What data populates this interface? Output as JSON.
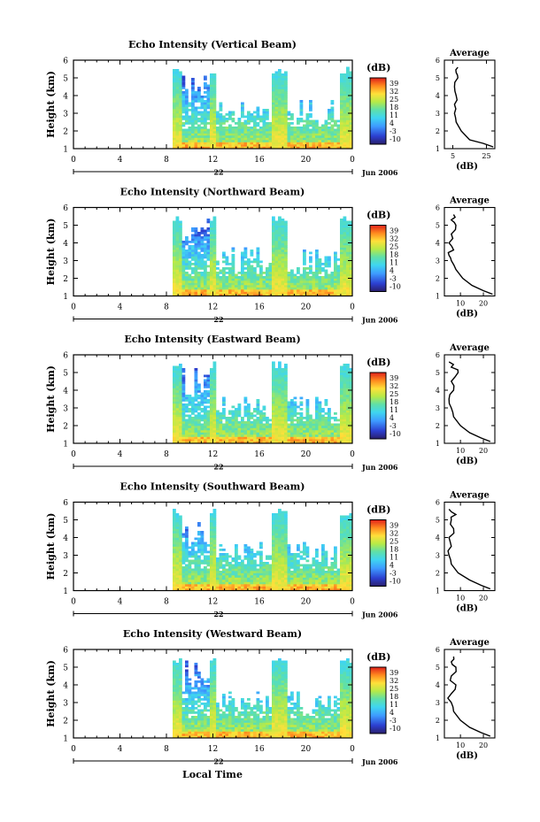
{
  "figure": {
    "xlabel_bottom": "Local Time",
    "date_label": "Jun 2006",
    "day_label": "22",
    "avg_title": "Average",
    "cbar_title": "(dB)",
    "avg_xlabel": "(dB)",
    "ylabel": "Height (km)",
    "x_ticks": [
      "0",
      "4",
      "8",
      "12",
      "16",
      "20",
      "0"
    ],
    "y_ticks": [
      "1",
      "2",
      "3",
      "4",
      "5",
      "6"
    ],
    "cbar_ticks": [
      "39",
      "32",
      "25",
      "18",
      "11",
      "4",
      "-3",
      "-10"
    ]
  },
  "chart_data": [
    {
      "type": "heatmap",
      "title": "Echo Intensity (Vertical Beam)",
      "xlabel": "Local Time",
      "ylabel": "Height (km)",
      "xlim": [
        0,
        24
      ],
      "ylim": [
        1,
        6
      ],
      "clim": [
        -10,
        39
      ],
      "echo_windows_hours": [
        [
          8.5,
          21.5
        ],
        [
          21.3,
          24
        ]
      ],
      "max_echo_height_km": 5.5,
      "average_profile": {
        "title": "Average",
        "xlabel": "(dB)",
        "xticks": [
          "5",
          "25"
        ],
        "xlim": [
          0,
          30
        ],
        "height_km": [
          1.1,
          1.3,
          1.5,
          2.0,
          2.5,
          3.0,
          3.5,
          4.0,
          4.5,
          5.0,
          5.3,
          5.6
        ],
        "db": [
          29,
          23,
          15,
          10,
          7,
          6,
          6,
          7,
          6,
          8,
          7,
          8
        ]
      }
    },
    {
      "type": "heatmap",
      "title": "Echo Intensity (Northward Beam)",
      "xlabel": "Local Time",
      "ylabel": "Height (km)",
      "xlim": [
        0,
        24
      ],
      "ylim": [
        1,
        6
      ],
      "clim": [
        -10,
        39
      ],
      "max_echo_height_km": 5.5,
      "average_profile": {
        "title": "Average",
        "xlabel": "(dB)",
        "xticks": [
          "10",
          "20"
        ],
        "xlim": [
          3,
          25
        ],
        "height_km": [
          1.1,
          1.3,
          1.6,
          2.0,
          2.5,
          3.0,
          3.3,
          3.6,
          4.0,
          4.5,
          5.0,
          5.3,
          5.6
        ],
        "db": [
          24,
          20,
          15,
          11,
          8,
          6,
          5,
          7,
          5,
          6,
          8,
          6,
          7
        ]
      }
    },
    {
      "type": "heatmap",
      "title": "Echo Intensity (Eastward Beam)",
      "xlabel": "Local Time",
      "ylabel": "Height (km)",
      "xlim": [
        0,
        24
      ],
      "ylim": [
        1,
        6
      ],
      "clim": [
        -10,
        39
      ],
      "max_echo_height_km": 5.5,
      "average_profile": {
        "title": "Average",
        "xlabel": "(dB)",
        "xticks": [
          "10",
          "20"
        ],
        "xlim": [
          3,
          25
        ],
        "height_km": [
          1.1,
          1.3,
          1.6,
          2.0,
          2.5,
          3.0,
          3.5,
          4.0,
          4.5,
          5.0,
          5.3,
          5.6
        ],
        "db": [
          23,
          19,
          14,
          10,
          7,
          6,
          5,
          7,
          6,
          9,
          6,
          5
        ]
      }
    },
    {
      "type": "heatmap",
      "title": "Echo Intensity (Southward Beam)",
      "xlabel": "Local Time",
      "ylabel": "Height (km)",
      "xlim": [
        0,
        24
      ],
      "ylim": [
        1,
        6
      ],
      "clim": [
        -10,
        39
      ],
      "max_echo_height_km": 5.5,
      "average_profile": {
        "title": "Average",
        "xlabel": "(dB)",
        "xticks": [
          "10",
          "20"
        ],
        "xlim": [
          3,
          25
        ],
        "height_km": [
          1.1,
          1.3,
          1.6,
          2.0,
          2.5,
          3.0,
          3.5,
          4.0,
          4.5,
          5.0,
          5.3,
          5.6
        ],
        "db": [
          23,
          19,
          14,
          9,
          6,
          5,
          6,
          5,
          7,
          6,
          8,
          5
        ]
      }
    },
    {
      "type": "heatmap",
      "title": "Echo Intensity (Westward Beam)",
      "xlabel": "Local Time",
      "ylabel": "Height (km)",
      "xlim": [
        0,
        24
      ],
      "ylim": [
        1,
        6
      ],
      "clim": [
        -10,
        39
      ],
      "max_echo_height_km": 5.5,
      "average_profile": {
        "title": "Average",
        "xlabel": "(dB)",
        "xticks": [
          "10",
          "20"
        ],
        "xlim": [
          3,
          25
        ],
        "height_km": [
          1.1,
          1.3,
          1.6,
          2.0,
          2.5,
          3.0,
          3.5,
          4.0,
          4.5,
          5.0,
          5.3,
          5.6
        ],
        "db": [
          23,
          19,
          14,
          10,
          7,
          6,
          6,
          8,
          6,
          8,
          6,
          7
        ]
      }
    }
  ]
}
